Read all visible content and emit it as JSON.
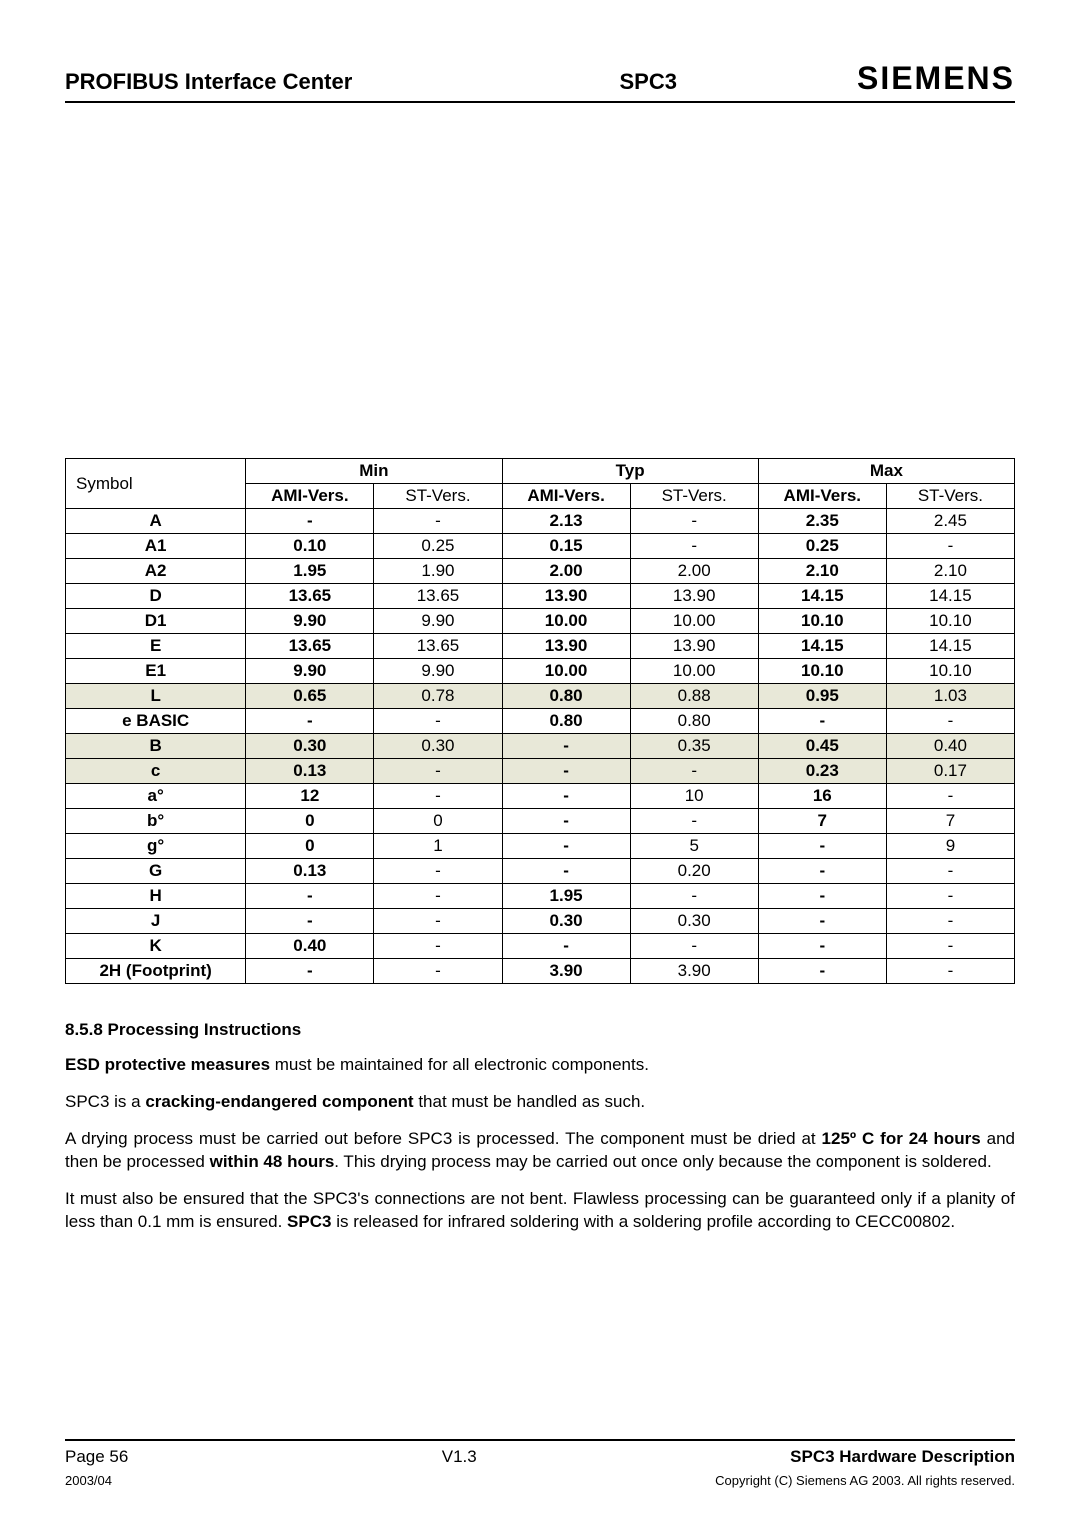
{
  "header": {
    "left": "PROFIBUS Interface Center",
    "center": "SPC3",
    "logo": "SIEMENS"
  },
  "table": {
    "col_symbol": "Symbol",
    "groups": [
      "Min",
      "Typ",
      "Max"
    ],
    "subcols": [
      "AMI-Vers.",
      "ST-Vers.",
      "AMI-Vers.",
      "ST-Vers.",
      "AMI-Vers.",
      "ST-Vers."
    ],
    "rows": [
      {
        "sym": "A",
        "v": [
          "-",
          "-",
          "2.13",
          "-",
          "2.35",
          "2.45"
        ],
        "b": [
          1,
          0,
          1,
          0,
          1,
          0
        ]
      },
      {
        "sym": "A1",
        "v": [
          "0.10",
          "0.25",
          "0.15",
          "-",
          "0.25",
          "-"
        ],
        "b": [
          1,
          0,
          1,
          0,
          1,
          0
        ]
      },
      {
        "sym": "A2",
        "v": [
          "1.95",
          "1.90",
          "2.00",
          "2.00",
          "2.10",
          "2.10"
        ],
        "b": [
          1,
          0,
          1,
          0,
          1,
          0
        ]
      },
      {
        "sym": "D",
        "v": [
          "13.65",
          "13.65",
          "13.90",
          "13.90",
          "14.15",
          "14.15"
        ],
        "b": [
          1,
          0,
          1,
          0,
          1,
          0
        ]
      },
      {
        "sym": "D1",
        "v": [
          "9.90",
          "9.90",
          "10.00",
          "10.00",
          "10.10",
          "10.10"
        ],
        "b": [
          1,
          0,
          1,
          0,
          1,
          0
        ]
      },
      {
        "sym": "E",
        "v": [
          "13.65",
          "13.65",
          "13.90",
          "13.90",
          "14.15",
          "14.15"
        ],
        "b": [
          1,
          0,
          1,
          0,
          1,
          0
        ]
      },
      {
        "sym": "E1",
        "v": [
          "9.90",
          "9.90",
          "10.00",
          "10.00",
          "10.10",
          "10.10"
        ],
        "b": [
          1,
          0,
          1,
          0,
          1,
          0
        ]
      },
      {
        "sym": "L",
        "v": [
          "0.65",
          "0.78",
          "0.80",
          "0.88",
          "0.95",
          "1.03"
        ],
        "b": [
          1,
          0,
          1,
          0,
          1,
          0
        ],
        "hl": true
      },
      {
        "sym": "e BASIC",
        "v": [
          "-",
          "-",
          "0.80",
          "0.80",
          "-",
          "-"
        ],
        "b": [
          1,
          0,
          1,
          0,
          1,
          0
        ]
      },
      {
        "sym": "B",
        "v": [
          "0.30",
          "0.30",
          "-",
          "0.35",
          "0.45",
          "0.40"
        ],
        "b": [
          1,
          0,
          1,
          0,
          1,
          0
        ],
        "hl": true
      },
      {
        "sym": "c",
        "v": [
          "0.13",
          "-",
          "-",
          "-",
          "0.23",
          "0.17"
        ],
        "b": [
          1,
          0,
          1,
          0,
          1,
          0
        ],
        "hl": true
      },
      {
        "sym": "a°",
        "v": [
          "12",
          "-",
          "-",
          "10",
          "16",
          "-"
        ],
        "b": [
          1,
          0,
          1,
          0,
          1,
          0
        ]
      },
      {
        "sym": "b°",
        "v": [
          "0",
          "0",
          "-",
          "-",
          "7",
          "7"
        ],
        "b": [
          1,
          0,
          1,
          0,
          1,
          0
        ]
      },
      {
        "sym": "g°",
        "v": [
          "0",
          "1",
          "-",
          "5",
          "-",
          "9"
        ],
        "b": [
          1,
          0,
          1,
          0,
          1,
          0
        ]
      },
      {
        "sym": "G",
        "v": [
          "0.13",
          "-",
          "-",
          "0.20",
          "-",
          "-"
        ],
        "b": [
          1,
          0,
          1,
          0,
          1,
          0
        ]
      },
      {
        "sym": "H",
        "v": [
          "-",
          "-",
          "1.95",
          "-",
          "-",
          "-"
        ],
        "b": [
          1,
          0,
          1,
          0,
          1,
          0
        ]
      },
      {
        "sym": "J",
        "v": [
          "-",
          "-",
          "0.30",
          "0.30",
          "-",
          "-"
        ],
        "b": [
          1,
          0,
          1,
          0,
          1,
          0
        ]
      },
      {
        "sym": "K",
        "v": [
          "0.40",
          "-",
          "-",
          "-",
          "-",
          "-"
        ],
        "b": [
          1,
          0,
          1,
          0,
          1,
          0
        ]
      },
      {
        "sym": "2H (Footprint)",
        "v": [
          "-",
          "-",
          "3.90",
          "3.90",
          "-",
          "-"
        ],
        "b": [
          1,
          0,
          1,
          0,
          1,
          0
        ]
      }
    ]
  },
  "section": {
    "heading": "8.5.8  Processing Instructions",
    "p1_pre": "ESD protective measures",
    "p1_post": " must be maintained for all electronic components.",
    "p2_pre": "SPC3 is a ",
    "p2_b": "cracking-endangered component",
    "p2_post": " that must be handled as such.",
    "p3_a": "A drying process must be carried out before SPC3 is processed.  The component must be dried at ",
    "p3_b1": "125º C for 24 hours",
    "p3_c": " and then be processed ",
    "p3_b2": "within 48 hours",
    "p3_d": ".  This drying process may be carried out once only because the component is soldered.",
    "p4_a": "It must also be ensured that the SPC3's connections are not bent.  Flawless processing can be guaranteed only if a planity of less than 0.1 mm is ensured.  ",
    "p4_b": "SPC3",
    "p4_c": " is released for infrared soldering with a soldering profile according to CECC00802."
  },
  "footer": {
    "page": "Page 56",
    "version": "V1.3",
    "title": "SPC3 Hardware Description",
    "date": "2003/04",
    "copyright": "Copyright (C) Siemens AG 2003. All rights reserved."
  }
}
